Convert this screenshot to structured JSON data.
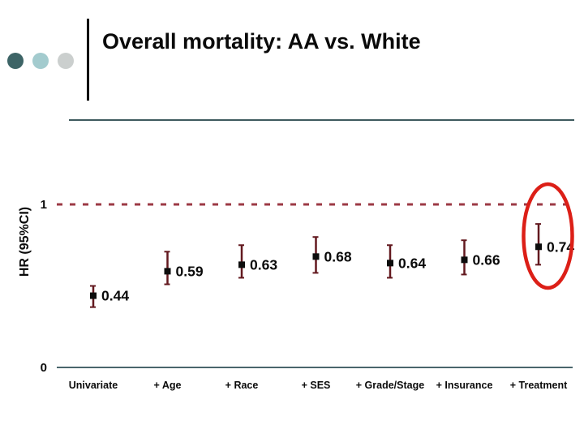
{
  "slide": {
    "title": "Overall mortality: AA vs. White"
  },
  "theme": {
    "dot1": "#3D6466",
    "dot2": "#A3CBCE",
    "dot3": "#CBCFCE",
    "divider": "#3E5A5E",
    "axis": "#4A666C",
    "text": "#0A0A0A",
    "reference": "#9C3A45",
    "errorBar": "#63191F",
    "marker": "#0D0D0D",
    "ellipse": "#DC1F17"
  },
  "chart_data": {
    "type": "scatter",
    "title": "",
    "y_axis_label": "HR (95%CI)",
    "categories": [
      "Univariate",
      "+ Age",
      "+ Race",
      "+ SES",
      "+ Grade/Stage",
      "+ Insurance",
      "+ Treatment"
    ],
    "values": [
      0.44,
      0.59,
      0.63,
      0.68,
      0.64,
      0.66,
      0.74
    ],
    "ci_low": [
      0.37,
      0.51,
      0.55,
      0.58,
      0.55,
      0.57,
      0.63
    ],
    "ci_high": [
      0.5,
      0.71,
      0.75,
      0.8,
      0.75,
      0.78,
      0.88
    ],
    "value_labels": [
      "0.44",
      "0.59",
      "0.63",
      "0.68",
      "0.64",
      "0.66",
      "0.74"
    ],
    "yticks": [
      {
        "value": 1,
        "label": "1"
      },
      {
        "value": 0,
        "label": "0"
      }
    ],
    "ylim": [
      0,
      1.2
    ],
    "grid": false,
    "legend": false,
    "reference_line": {
      "value": 1,
      "style": "dashed"
    },
    "annotation": {
      "type": "ellipse",
      "target_category": "+ Treatment"
    }
  }
}
